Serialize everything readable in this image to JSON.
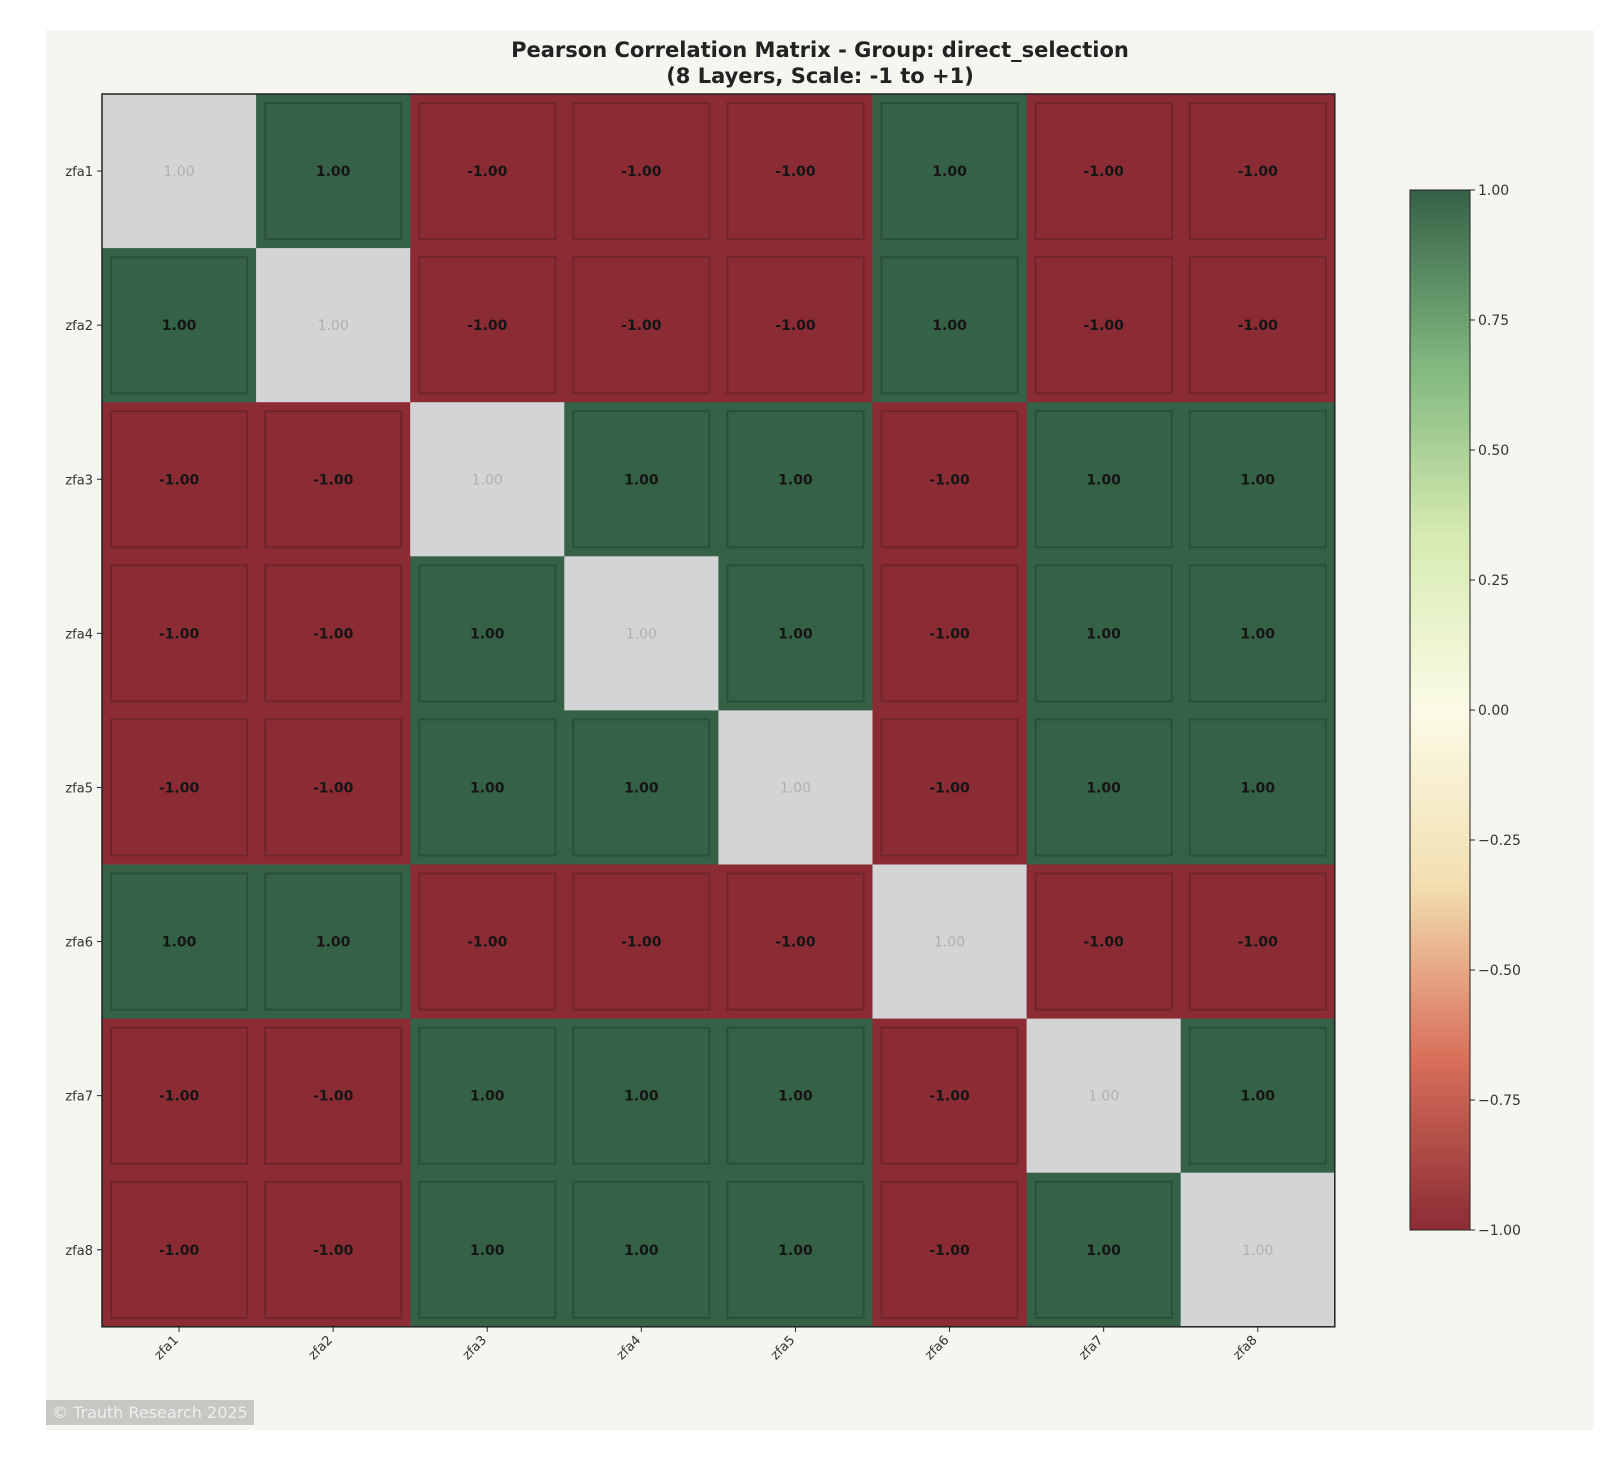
{
  "chart_data": {
    "type": "heatmap",
    "title": "Pearson Correlation Matrix - Group: direct_selection",
    "subtitle": "(8 Layers, Scale: -1 to +1)",
    "row_labels": [
      "zfa1",
      "zfa2",
      "zfa3",
      "zfa4",
      "zfa5",
      "zfa6",
      "zfa7",
      "zfa8"
    ],
    "col_labels": [
      "zfa1",
      "zfa2",
      "zfa3",
      "zfa4",
      "zfa5",
      "zfa6",
      "zfa7",
      "zfa8"
    ],
    "values": [
      [
        1,
        1,
        -1,
        -1,
        -1,
        1,
        -1,
        -1
      ],
      [
        1,
        1,
        -1,
        -1,
        -1,
        1,
        -1,
        -1
      ],
      [
        -1,
        -1,
        1,
        1,
        1,
        -1,
        1,
        1
      ],
      [
        -1,
        -1,
        1,
        1,
        1,
        -1,
        1,
        1
      ],
      [
        -1,
        -1,
        1,
        1,
        1,
        -1,
        1,
        1
      ],
      [
        1,
        1,
        -1,
        -1,
        -1,
        1,
        -1,
        -1
      ],
      [
        -1,
        -1,
        1,
        1,
        1,
        -1,
        1,
        1
      ],
      [
        -1,
        -1,
        1,
        1,
        1,
        -1,
        1,
        1
      ]
    ],
    "cell_labels": [
      [
        "1.00",
        "1.00",
        "-1.00",
        "-1.00",
        "-1.00",
        "1.00",
        "-1.00",
        "-1.00"
      ],
      [
        "1.00",
        "1.00",
        "-1.00",
        "-1.00",
        "-1.00",
        "1.00",
        "-1.00",
        "-1.00"
      ],
      [
        "-1.00",
        "-1.00",
        "1.00",
        "1.00",
        "1.00",
        "-1.00",
        "1.00",
        "1.00"
      ],
      [
        "-1.00",
        "-1.00",
        "1.00",
        "1.00",
        "1.00",
        "-1.00",
        "1.00",
        "1.00"
      ],
      [
        "-1.00",
        "-1.00",
        "1.00",
        "1.00",
        "1.00",
        "-1.00",
        "1.00",
        "1.00"
      ],
      [
        "1.00",
        "1.00",
        "-1.00",
        "-1.00",
        "-1.00",
        "1.00",
        "-1.00",
        "-1.00"
      ],
      [
        "-1.00",
        "-1.00",
        "1.00",
        "1.00",
        "1.00",
        "-1.00",
        "1.00",
        "1.00"
      ],
      [
        "-1.00",
        "-1.00",
        "1.00",
        "1.00",
        "1.00",
        "-1.00",
        "1.00",
        "1.00"
      ]
    ],
    "diagonal_greyed": true,
    "vmin": -1,
    "vmax": 1,
    "colorbar": {
      "ticks": [
        1.0,
        0.75,
        0.5,
        0.25,
        0.0,
        -0.25,
        -0.5,
        -0.75,
        -1.0
      ],
      "tick_labels": [
        "1.00",
        "0.75",
        "0.50",
        "0.25",
        "0.00",
        "−0.25",
        "−0.50",
        "−0.75",
        "−1.00"
      ],
      "placement": "right"
    },
    "colors": {
      "negative": "#8b2c35",
      "positive": "#356147",
      "diagonal": "#d4d4d4",
      "colormap": [
        "#8b2c35",
        "#d9705a",
        "#f3dfb1",
        "#fbfbe6",
        "#d6ebb0",
        "#7fb77e",
        "#356147"
      ]
    },
    "grid": false
  },
  "watermark": "© Trauth Research 2025"
}
